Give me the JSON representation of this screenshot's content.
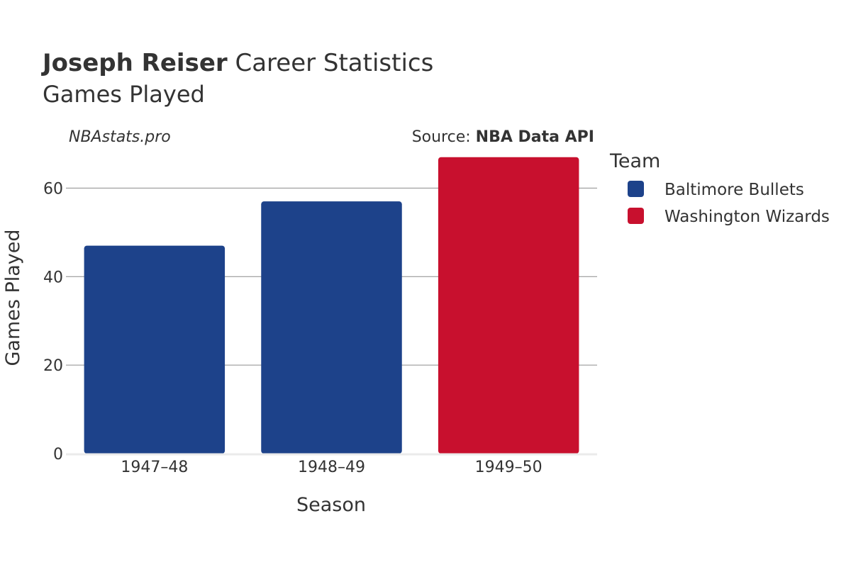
{
  "header": {
    "player_name": "Joseph Reiser",
    "title_rest": " Career Statistics",
    "subtitle": "Games Played",
    "brand": "NBAstats.pro",
    "source_prefix": "Source: ",
    "source_name": "NBA Data API"
  },
  "legend": {
    "title": "Team",
    "items": [
      {
        "label": "Baltimore Bullets",
        "color": "#1d428a"
      },
      {
        "label": "Washington Wizards",
        "color": "#c8102e"
      }
    ]
  },
  "chart_data": {
    "type": "bar",
    "xlabel": "Season",
    "ylabel": "Games Played",
    "ylim": [
      0,
      70
    ],
    "yticks": [
      0,
      20,
      40,
      60
    ],
    "grid": true,
    "legend_position": "right",
    "categories": [
      "1947–48",
      "1948–49",
      "1949–50"
    ],
    "series": [
      {
        "name": "Baltimore Bullets",
        "color": "#1d428a",
        "values": [
          47,
          57,
          null
        ]
      },
      {
        "name": "Washington Wizards",
        "color": "#c8102e",
        "values": [
          null,
          null,
          67
        ]
      }
    ]
  }
}
